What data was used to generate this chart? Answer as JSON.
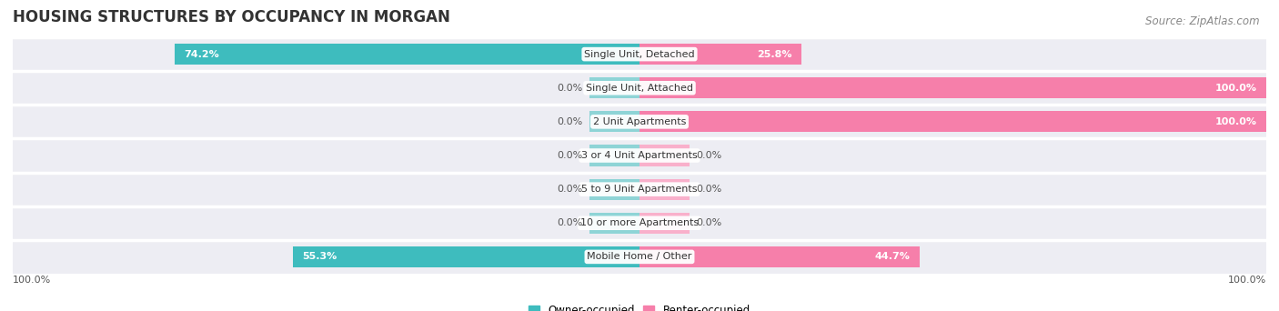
{
  "title": "HOUSING STRUCTURES BY OCCUPANCY IN MORGAN",
  "source": "Source: ZipAtlas.com",
  "categories": [
    "Single Unit, Detached",
    "Single Unit, Attached",
    "2 Unit Apartments",
    "3 or 4 Unit Apartments",
    "5 to 9 Unit Apartments",
    "10 or more Apartments",
    "Mobile Home / Other"
  ],
  "owner_pct": [
    74.2,
    0.0,
    0.0,
    0.0,
    0.0,
    0.0,
    55.3
  ],
  "renter_pct": [
    25.8,
    100.0,
    100.0,
    0.0,
    0.0,
    0.0,
    44.7
  ],
  "owner_color": "#3ebcbe",
  "renter_color": "#f67faa",
  "owner_stub_color": "#8ed4d6",
  "renter_stub_color": "#f9b0cb",
  "row_bg_color": "#ededf3",
  "row_sep_color": "#ffffff",
  "owner_label": "Owner-occupied",
  "renter_label": "Renter-occupied",
  "axis_label_left": "100.0%",
  "axis_label_right": "100.0%",
  "title_fontsize": 12,
  "source_fontsize": 8.5,
  "label_fontsize": 8,
  "category_fontsize": 8,
  "bar_height": 0.62,
  "stub_size": 8,
  "figsize": [
    14.06,
    3.42
  ]
}
